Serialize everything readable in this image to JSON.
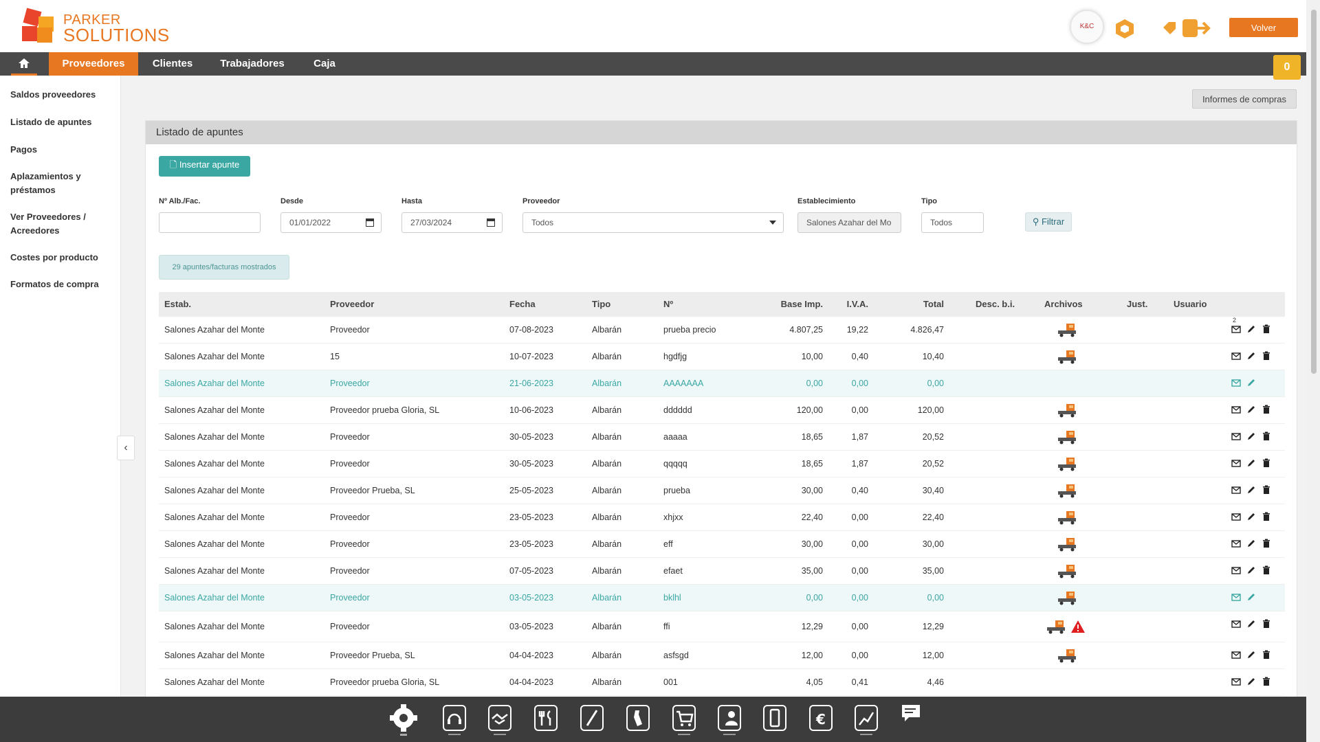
{
  "brand": {
    "line1": "PARKER",
    "line2": "SOLUTIONS"
  },
  "header": {
    "avatar_text": "K&C",
    "volver_label": "Volver",
    "icons": [
      "hexagon-icon",
      "badge-icon",
      "exit-icon"
    ]
  },
  "nav": {
    "home_icon": "home-icon",
    "items": [
      {
        "label": "Proveedores",
        "active": true
      },
      {
        "label": "Clientes"
      },
      {
        "label": "Trabajadores"
      },
      {
        "label": "Caja"
      }
    ],
    "cart_count": "0"
  },
  "sidebar": {
    "items": [
      {
        "label": "Saldos proveedores"
      },
      {
        "label": "Listado de apuntes"
      },
      {
        "label": "Pagos"
      },
      {
        "label": "Aplazamientos y préstamos"
      },
      {
        "label": "Ver Proveedores / Acreedores"
      },
      {
        "label": "Costes por producto"
      },
      {
        "label": "Formatos de compra"
      }
    ]
  },
  "main": {
    "informes_label": "Informes de compras",
    "panel_title": "Listado de apuntes",
    "insert_label": "Insertar apunte",
    "filters": {
      "num_label": "Nº Alb./Fac.",
      "num_value": "",
      "desde_label": "Desde",
      "desde_value": "01/01/2022",
      "hasta_label": "Hasta",
      "hasta_value": "27/03/2024",
      "proveedor_label": "Proveedor",
      "proveedor_value": "Todos",
      "establecimiento_label": "Establecimiento",
      "establecimiento_value": "Salones Azahar del Mo",
      "tipo_label": "Tipo",
      "tipo_value": "Todos",
      "filtrar_label": "Filtrar"
    },
    "count_text": "29 apuntes/facturas mostrados"
  },
  "table": {
    "headers": [
      "Estab.",
      "Proveedor",
      "Fecha",
      "Tipo",
      "Nº",
      "Base Imp.",
      "I.V.A.",
      "Total",
      "Desc. b.i.",
      "Archivos",
      "Just.",
      "Usuario"
    ],
    "rows": [
      {
        "estab": "Salones Azahar del Monte",
        "proveedor": "Proveedor",
        "fecha": "07-08-2023",
        "tipo": "Albarán",
        "num": "prueba precio",
        "base": "4.807,25",
        "iva": "19,22",
        "total": "4.826,47",
        "archivo": true,
        "warn": false,
        "teal": false,
        "mail_count": "2"
      },
      {
        "estab": "Salones Azahar del Monte",
        "proveedor": "15",
        "fecha": "10-07-2023",
        "tipo": "Albarán",
        "num": "hgdfjg",
        "base": "10,00",
        "iva": "0,40",
        "total": "10,40",
        "archivo": true,
        "warn": false,
        "teal": false
      },
      {
        "estab": "Salones Azahar del Monte",
        "proveedor": "Proveedor",
        "fecha": "21-06-2023",
        "tipo": "Albarán",
        "num": "AAAAAAA",
        "base": "0,00",
        "iva": "0,00",
        "total": "0,00",
        "archivo": false,
        "warn": false,
        "teal": true
      },
      {
        "estab": "Salones Azahar del Monte",
        "proveedor": "Proveedor prueba Gloria, SL",
        "fecha": "10-06-2023",
        "tipo": "Albarán",
        "num": "dddddd",
        "base": "120,00",
        "iva": "0,00",
        "total": "120,00",
        "archivo": true,
        "warn": false,
        "teal": false
      },
      {
        "estab": "Salones Azahar del Monte",
        "proveedor": "Proveedor",
        "fecha": "30-05-2023",
        "tipo": "Albarán",
        "num": "aaaaa",
        "base": "18,65",
        "iva": "1,87",
        "total": "20,52",
        "archivo": true,
        "warn": false,
        "teal": false
      },
      {
        "estab": "Salones Azahar del Monte",
        "proveedor": "Proveedor",
        "fecha": "30-05-2023",
        "tipo": "Albarán",
        "num": "qqqqq",
        "base": "18,65",
        "iva": "1,87",
        "total": "20,52",
        "archivo": true,
        "warn": false,
        "teal": false
      },
      {
        "estab": "Salones Azahar del Monte",
        "proveedor": "Proveedor Prueba, SL",
        "fecha": "25-05-2023",
        "tipo": "Albarán",
        "num": "prueba",
        "base": "30,00",
        "iva": "0,40",
        "total": "30,40",
        "archivo": true,
        "warn": false,
        "teal": false
      },
      {
        "estab": "Salones Azahar del Monte",
        "proveedor": "Proveedor",
        "fecha": "23-05-2023",
        "tipo": "Albarán",
        "num": "xhjxx",
        "base": "22,40",
        "iva": "0,00",
        "total": "22,40",
        "archivo": true,
        "warn": false,
        "teal": false
      },
      {
        "estab": "Salones Azahar del Monte",
        "proveedor": "Proveedor",
        "fecha": "23-05-2023",
        "tipo": "Albarán",
        "num": "eff",
        "base": "30,00",
        "iva": "0,00",
        "total": "30,00",
        "archivo": true,
        "warn": false,
        "teal": false
      },
      {
        "estab": "Salones Azahar del Monte",
        "proveedor": "Proveedor",
        "fecha": "07-05-2023",
        "tipo": "Albarán",
        "num": "efaet",
        "base": "35,00",
        "iva": "0,00",
        "total": "35,00",
        "archivo": true,
        "warn": false,
        "teal": false
      },
      {
        "estab": "Salones Azahar del Monte",
        "proveedor": "Proveedor",
        "fecha": "03-05-2023",
        "tipo": "Albarán",
        "num": "bklhl",
        "base": "0,00",
        "iva": "0,00",
        "total": "0,00",
        "archivo": true,
        "warn": false,
        "teal": true
      },
      {
        "estab": "Salones Azahar del Monte",
        "proveedor": "Proveedor",
        "fecha": "03-05-2023",
        "tipo": "Albarán",
        "num": "ffi",
        "base": "12,29",
        "iva": "0,00",
        "total": "12,29",
        "archivo": true,
        "warn": true,
        "teal": false
      },
      {
        "estab": "Salones Azahar del Monte",
        "proveedor": "Proveedor Prueba, SL",
        "fecha": "04-04-2023",
        "tipo": "Albarán",
        "num": "asfsgd",
        "base": "12,00",
        "iva": "0,00",
        "total": "12,00",
        "archivo": true,
        "warn": false,
        "teal": false
      },
      {
        "estab": "Salones Azahar del Monte",
        "proveedor": "Proveedor prueba Gloria, SL",
        "fecha": "04-04-2023",
        "tipo": "Albarán",
        "num": "001",
        "base": "4,05",
        "iva": "0,41",
        "total": "4,46",
        "archivo": false,
        "warn": false,
        "teal": false
      }
    ]
  },
  "bottom_icons": [
    "gear-icon",
    "support-icon",
    "handshake-icon",
    "cutlery-icon",
    "pen-icon",
    "bottle-icon",
    "cart-icon",
    "contacts-icon",
    "mobile-icon",
    "euro-icon",
    "chart-icon",
    "chat-icon"
  ],
  "colors": {
    "accent": "#e87722",
    "teal": "#3aa7a3",
    "nav_bg": "#4a4a4a",
    "bottom_bg": "#3c3c3c"
  }
}
